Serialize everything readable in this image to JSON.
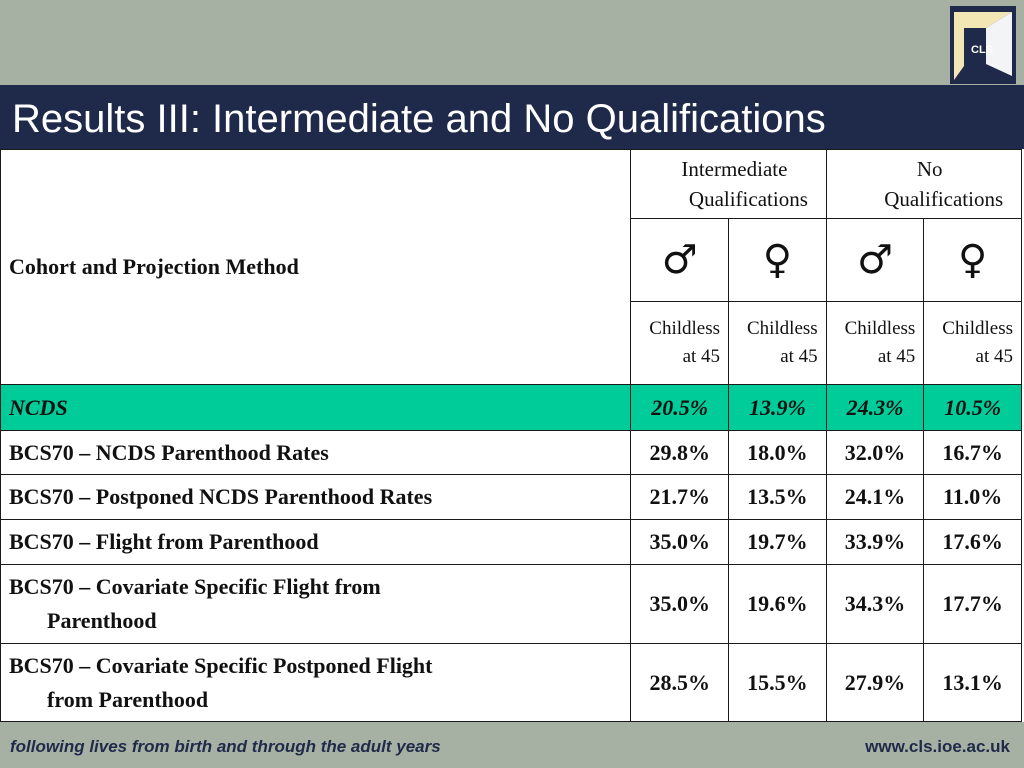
{
  "header": {
    "logo_text": "CLS",
    "title": "Results III: Intermediate and No Qualifications"
  },
  "table": {
    "row_header": "Cohort and Projection Method",
    "groups": [
      {
        "line1": "Intermediate",
        "line2": "Qualifications"
      },
      {
        "line1": "No",
        "line2": "Qualifications"
      }
    ],
    "sex_symbols": [
      "♂",
      "♀",
      "♂",
      "♀"
    ],
    "sub_headers": [
      {
        "line1": "Childless",
        "line2": "at 45"
      },
      {
        "line1": "Childless",
        "line2": "at 45"
      },
      {
        "line1": "Childless",
        "line2": "at 45"
      },
      {
        "line1": "Childless",
        "line2": "at 45"
      }
    ],
    "rows": [
      {
        "label": "NCDS",
        "label2": "",
        "values": [
          "20.5%",
          "13.9%",
          "24.3%",
          "10.5%"
        ]
      },
      {
        "label": "BCS70 – NCDS Parenthood Rates",
        "label2": "",
        "values": [
          "29.8%",
          "18.0%",
          "32.0%",
          "16.7%"
        ]
      },
      {
        "label": "BCS70 – Postponed NCDS Parenthood Rates",
        "label2": "",
        "values": [
          "21.7%",
          "13.5%",
          "24.1%",
          "11.0%"
        ]
      },
      {
        "label": "BCS70 – Flight from Parenthood",
        "label2": "",
        "values": [
          "35.0%",
          "19.7%",
          "33.9%",
          "17.6%"
        ]
      },
      {
        "label": "BCS70 – Covariate Specific Flight from",
        "label2": "Parenthood",
        "values": [
          "35.0%",
          "19.6%",
          "34.3%",
          "17.7%"
        ]
      },
      {
        "label": "BCS70 – Covariate Specific Postponed Flight",
        "label2": "from Parenthood",
        "values": [
          "28.5%",
          "15.5%",
          "27.9%",
          "13.1%"
        ]
      }
    ]
  },
  "footer": {
    "tagline": "following lives from birth and through the adult years",
    "url": "www.cls.ioe.ac.uk"
  },
  "colors": {
    "navy": "#1f2a4a",
    "sage": "#a7b1a3",
    "highlight": "#00cc99",
    "logo_cream": "#f1e6b4"
  }
}
